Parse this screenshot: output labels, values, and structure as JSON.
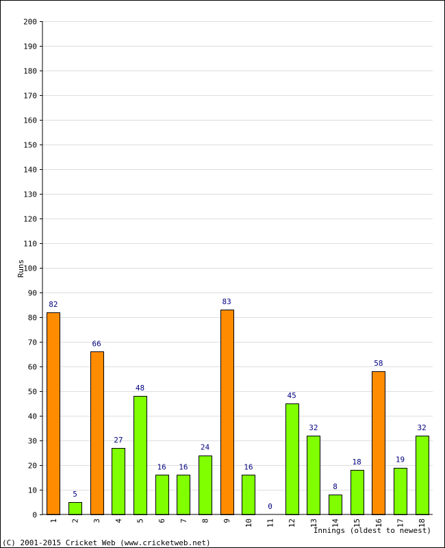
{
  "chart_data": {
    "type": "bar",
    "xlabel": "Innings (oldest to newest)",
    "ylabel": "Runs",
    "ylim": [
      0,
      200
    ],
    "y_ticks": [
      0,
      10,
      20,
      30,
      40,
      50,
      60,
      70,
      80,
      90,
      100,
      110,
      120,
      130,
      140,
      150,
      160,
      170,
      180,
      190,
      200
    ],
    "grid": true,
    "categories": [
      "1",
      "2",
      "3",
      "4",
      "5",
      "6",
      "7",
      "8",
      "9",
      "10",
      "11",
      "12",
      "13",
      "14",
      "15",
      "16",
      "17",
      "18"
    ],
    "values": [
      82,
      5,
      66,
      27,
      48,
      16,
      16,
      24,
      83,
      16,
      0,
      45,
      32,
      8,
      18,
      58,
      19,
      32
    ],
    "bar_colors": [
      "#ff8c00",
      "#80ff00",
      "#ff8c00",
      "#80ff00",
      "#80ff00",
      "#80ff00",
      "#80ff00",
      "#80ff00",
      "#ff8c00",
      "#80ff00",
      "#80ff00",
      "#80ff00",
      "#80ff00",
      "#80ff00",
      "#80ff00",
      "#ff8c00",
      "#80ff00",
      "#80ff00"
    ],
    "colors": {
      "fifty_plus": "#ff8c00",
      "under_fifty": "#80ff00",
      "value_label": "#000080",
      "grid": "#dddddd",
      "bar_border": "#000000"
    }
  },
  "footer": {
    "text": "(C) 2001-2015 Cricket Web (www.cricketweb.net)"
  }
}
